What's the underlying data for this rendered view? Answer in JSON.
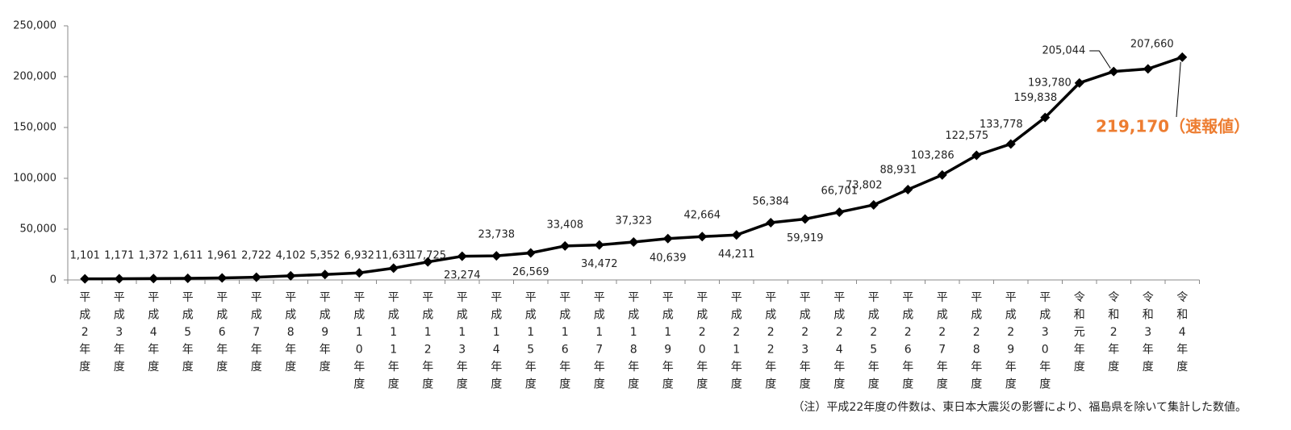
{
  "chart_data": {
    "type": "line",
    "categories": [
      "平成2年度",
      "平成3年度",
      "平成4年度",
      "平成5年度",
      "平成6年度",
      "平成7年度",
      "平成8年度",
      "平成9年度",
      "平成10年度",
      "平成11年度",
      "平成12年度",
      "平成13年度",
      "平成14年度",
      "平成15年度",
      "平成16年度",
      "平成17年度",
      "平成18年度",
      "平成19年度",
      "平成20年度",
      "平成21年度",
      "平成22年度",
      "平成23年度",
      "平成24年度",
      "平成25年度",
      "平成26年度",
      "平成27年度",
      "平成28年度",
      "平成29年度",
      "平成30年度",
      "令和元年度",
      "令和2年度",
      "令和3年度",
      "令和4年度"
    ],
    "values": [
      1101,
      1171,
      1372,
      1611,
      1961,
      2722,
      4102,
      5352,
      6932,
      11631,
      17725,
      23274,
      23738,
      26569,
      33408,
      34472,
      37323,
      40639,
      42664,
      44211,
      56384,
      59919,
      66701,
      73802,
      88931,
      103286,
      122575,
      133778,
      159838,
      193780,
      205044,
      207660,
      219170
    ],
    "value_labels": [
      "1,101",
      "1,171",
      "1,372",
      "1,611",
      "1,961",
      "2,722",
      "4,102",
      "5,352",
      "6,932",
      "11,631",
      "17,725",
      "23,274",
      "23,738",
      "26,569",
      "33,408",
      "34,472",
      "37,323",
      "40,639",
      "42,664",
      "44,211",
      "56,384",
      "59,919",
      "66,701",
      "73,802",
      "88,931",
      "103,286",
      "122,575",
      "133,778",
      "159,838",
      "193,780",
      "205,044",
      "207,660",
      "219,170（速報値）"
    ],
    "color": "#000000",
    "highlight_color": "#ed7d31",
    "ylim": [
      0,
      250000
    ],
    "yticks": [
      0,
      {
        "value": 50000,
        "label": "50,000"
      },
      {
        "value": 100000,
        "label": "100,000"
      },
      {
        "value": 150000,
        "label": "150,000"
      },
      {
        "value": 200000,
        "label": "200,000"
      },
      {
        "value": 250000,
        "label": "250,000"
      }
    ],
    "grid": false,
    "note": "（注）平成22年度の件数は、東日本大震災の影響により、福島県を除いて集計した数値。"
  }
}
